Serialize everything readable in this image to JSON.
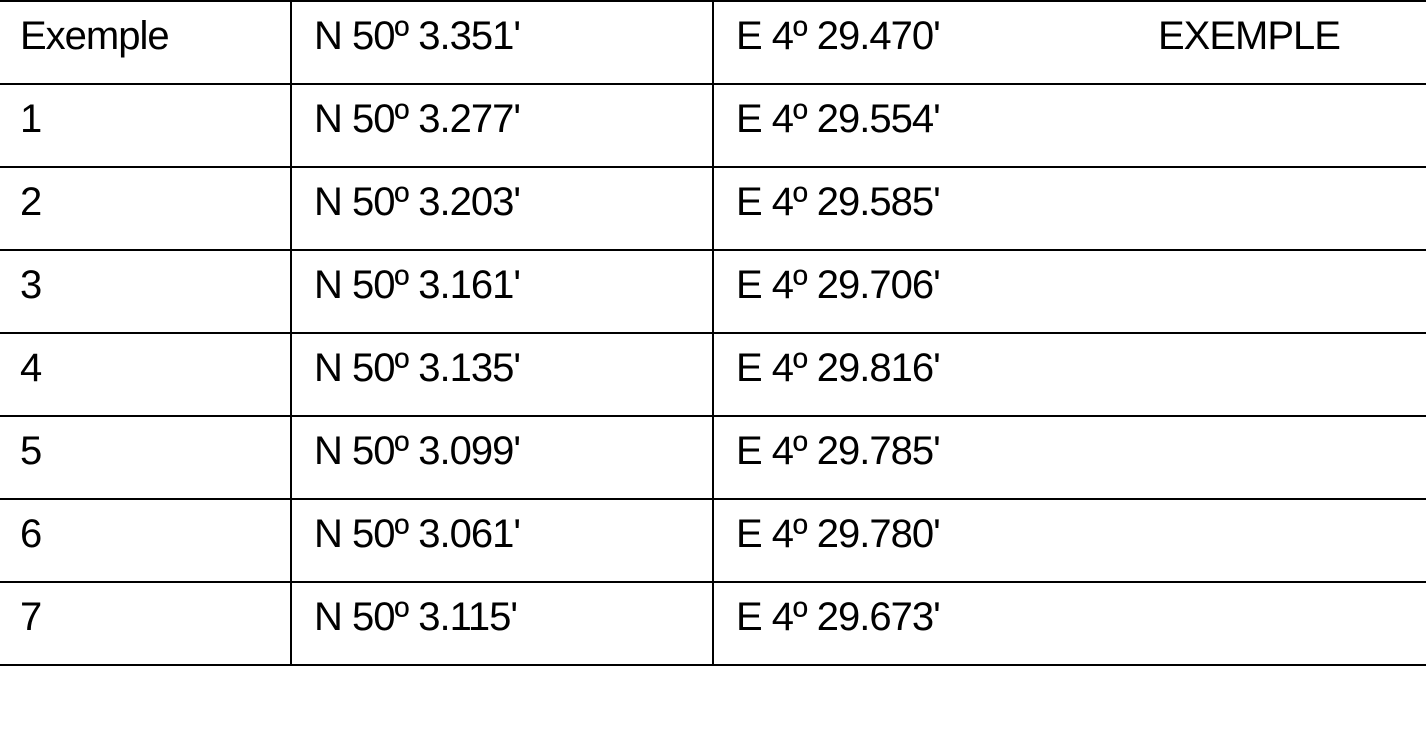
{
  "rows": [
    {
      "bullet": "•",
      "name": "Exemple",
      "lat": "N 50º 3.351'",
      "lon": "E 4º 29.470'",
      "note": "EXEMPLE"
    },
    {
      "bullet": "•",
      "name": "1",
      "lat": "N 50º 3.277'",
      "lon": "E 4º 29.554'",
      "note": ""
    },
    {
      "bullet": "•",
      "name": "2",
      "lat": "N 50º 3.203'",
      "lon": "E 4º 29.585'",
      "note": ""
    },
    {
      "bullet": "•",
      "name": "3",
      "lat": "N 50º 3.161'",
      "lon": "E 4º 29.706'",
      "note": ""
    },
    {
      "bullet": "•",
      "name": "4",
      "lat": "N 50º 3.135'",
      "lon": "E 4º 29.816'",
      "note": ""
    },
    {
      "bullet": "•",
      "name": "5",
      "lat": "N 50º 3.099'",
      "lon": "E 4º 29.785'",
      "note": ""
    },
    {
      "bullet": "•",
      "name": "6",
      "lat": "N 50º 3.061'",
      "lon": "E 4º 29.780'",
      "note": ""
    },
    {
      "bullet": "•",
      "name": "7",
      "lat": "N 50º 3.115'",
      "lon": "E 4º 29.673'",
      "note": ""
    }
  ]
}
